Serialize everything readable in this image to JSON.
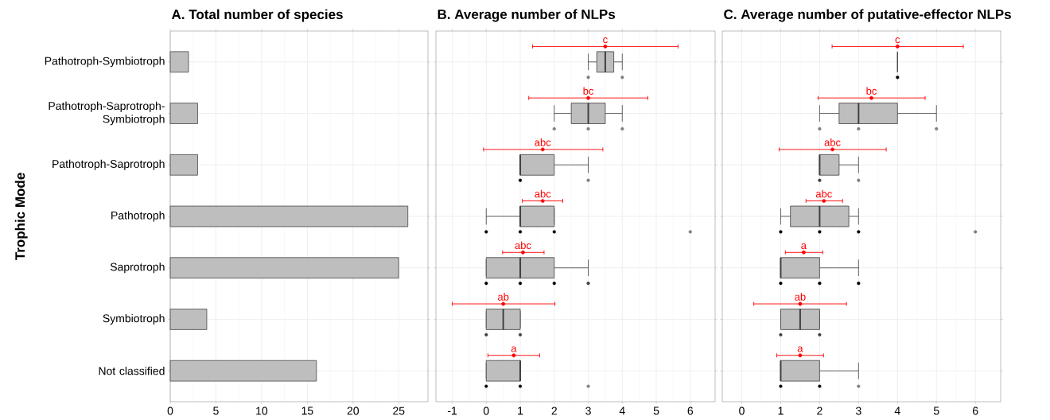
{
  "chart_data": [
    {
      "type": "bar",
      "orientation": "horizontal",
      "title": "A. Total number of species",
      "ylabel": "Trophic Mode",
      "categories": [
        "Pathotroph-Symbiotroph",
        "Pathotroph-Saprotroph-Symbiotroph",
        "Pathotroph-Saprotroph",
        "Pathotroph",
        "Saprotroph",
        "Symbiotroph",
        "Not classified"
      ],
      "values": [
        2,
        3,
        3,
        26,
        25,
        4,
        16
      ],
      "color": "#bebebe",
      "xlim": [
        0,
        28.2
      ],
      "xticks": [
        0,
        5,
        10,
        15,
        20,
        25
      ],
      "grid": true
    },
    {
      "type": "box",
      "orientation": "horizontal",
      "title": "B. Average number of NLPs",
      "categories": [
        "Pathotroph-Symbiotroph",
        "Pathotroph-Saprotroph-Symbiotroph",
        "Pathotroph-Saprotroph",
        "Pathotroph",
        "Saprotroph",
        "Symbiotroph",
        "Not classified"
      ],
      "xlim": [
        -1.48,
        6.73
      ],
      "xticks": [
        -1,
        0,
        1,
        2,
        3,
        4,
        5,
        6
      ],
      "grid": true,
      "tick_labels": "x",
      "series": [
        {
          "type": "box",
          "color": "#bebebe",
          "boxes": [
            {
              "low": 3,
              "q1": 3.25,
              "median": 3.5,
              "q3": 3.75,
              "high": 4
            },
            {
              "low": 2,
              "q1": 2.5,
              "median": 3,
              "q3": 3.5,
              "high": 4
            },
            {
              "low": 1,
              "q1": 1,
              "median": 1,
              "q3": 2,
              "high": 3
            },
            {
              "low": 0,
              "q1": 1,
              "median": 1,
              "q3": 2,
              "high": 2
            },
            {
              "low": 0,
              "q1": 0,
              "median": 1,
              "q3": 2,
              "high": 3
            },
            {
              "low": 0,
              "q1": 0,
              "median": 0.5,
              "q3": 1,
              "high": 1
            },
            {
              "low": 0,
              "q1": 0,
              "median": 1,
              "q3": 1,
              "high": 1
            }
          ]
        },
        {
          "type": "scatter",
          "x": [
            "Pathotroph-Symbiotroph",
            "Pathotroph-Symbiotroph",
            "Pathotroph-Saprotroph-Symbiotroph",
            "Pathotroph-Saprotroph-Symbiotroph",
            "Pathotroph-Saprotroph-Symbiotroph",
            "Pathotroph-Saprotroph",
            "Pathotroph-Saprotroph",
            "Pathotroph",
            "Pathotroph",
            "Pathotroph",
            "Pathotroph",
            "Saprotroph",
            "Saprotroph",
            "Saprotroph",
            "Saprotroph",
            "Symbiotroph",
            "Symbiotroph",
            "Not classified",
            "Not classified",
            "Not classified"
          ],
          "values": [
            3,
            4,
            2,
            3,
            4,
            1,
            3,
            0,
            1,
            2,
            6,
            0,
            1,
            2,
            3,
            0,
            1,
            0,
            1,
            3
          ],
          "colors": [
            "#7f7f7f",
            "#7f7f7f",
            "#7f7f7f",
            "#7f7f7f",
            "#7f7f7f",
            "#000000",
            "#7f7f7f",
            "#000000",
            "#000000",
            "#000000",
            "#7f7f7f",
            "#000000",
            "#000000",
            "#000000",
            "#3d3d3d",
            "#3d3d3d",
            "#3d3d3d",
            "#000000",
            "#000000",
            "#7f7f7f"
          ]
        },
        {
          "type": "scatter",
          "color": "#ff0000",
          "values": [
            3.5,
            3.0,
            1.66,
            1.66,
            1.08,
            0.5,
            0.81
          ],
          "errors": [
            [
              1.36,
              5.64
            ],
            [
              1.25,
              4.75
            ],
            [
              -0.08,
              3.43
            ],
            [
              1.06,
              2.25
            ],
            [
              0.48,
              1.7
            ],
            [
              -1.0,
              2.02
            ],
            [
              0.05,
              1.57
            ]
          ]
        }
      ],
      "annotations": [
        "c",
        "bc",
        "abc",
        "abc",
        "abc",
        "ab",
        "a"
      ]
    },
    {
      "type": "box",
      "orientation": "horizontal",
      "title": "C. Average number of putative-effector NLPs",
      "categories": [
        "Pathotroph-Symbiotroph",
        "Pathotroph-Saprotroph-Symbiotroph",
        "Pathotroph-Saprotroph",
        "Pathotroph",
        "Saprotroph",
        "Symbiotroph",
        "Not classified"
      ],
      "xlim": [
        -0.5,
        6.65
      ],
      "xticks": [
        0,
        1,
        2,
        3,
        4,
        5,
        6
      ],
      "grid": true,
      "tick_labels": "x",
      "series": [
        {
          "type": "box",
          "color": "#bebebe",
          "boxes": [
            {
              "low": 4,
              "q1": 4,
              "median": 4,
              "q3": 4,
              "high": 4
            },
            {
              "low": 2,
              "q1": 2.5,
              "median": 3,
              "q3": 4,
              "high": 5
            },
            {
              "low": 2,
              "q1": 2,
              "median": 2,
              "q3": 2.5,
              "high": 3
            },
            {
              "low": 1,
              "q1": 1.25,
              "median": 2,
              "q3": 2.75,
              "high": 3
            },
            {
              "low": 1,
              "q1": 1,
              "median": 1,
              "q3": 2,
              "high": 3
            },
            {
              "low": 1,
              "q1": 1,
              "median": 1.5,
              "q3": 2,
              "high": 2
            },
            {
              "low": 1,
              "q1": 1,
              "median": 1,
              "q3": 2,
              "high": 3
            }
          ]
        },
        {
          "type": "scatter",
          "x": [
            "Pathotroph-Symbiotroph",
            "Pathotroph-Saprotroph-Symbiotroph",
            "Pathotroph-Saprotroph-Symbiotroph",
            "Pathotroph-Saprotroph-Symbiotroph",
            "Pathotroph-Saprotroph",
            "Pathotroph-Saprotroph",
            "Pathotroph",
            "Pathotroph",
            "Pathotroph",
            "Pathotroph",
            "Saprotroph",
            "Saprotroph",
            "Saprotroph",
            "Symbiotroph",
            "Symbiotroph",
            "Not classified",
            "Not classified",
            "Not classified"
          ],
          "values": [
            4,
            2,
            3,
            5,
            2,
            3,
            1,
            2,
            3,
            6,
            1,
            2,
            3,
            1,
            2,
            1,
            2,
            3
          ],
          "colors": [
            "#000000",
            "#7f7f7f",
            "#7f7f7f",
            "#7f7f7f",
            "#3d3d3d",
            "#7f7f7f",
            "#000000",
            "#000000",
            "#000000",
            "#7f7f7f",
            "#000000",
            "#000000",
            "#000000",
            "#3d3d3d",
            "#3d3d3d",
            "#000000",
            "#000000",
            "#7f7f7f"
          ]
        },
        {
          "type": "scatter",
          "color": "#ff0000",
          "values": [
            4.0,
            3.33,
            2.33,
            2.11,
            1.59,
            1.5,
            1.5
          ],
          "errors": [
            [
              2.32,
              5.69
            ],
            [
              1.96,
              4.71
            ],
            [
              0.96,
              3.71
            ],
            [
              1.65,
              2.59
            ],
            [
              1.12,
              2.08
            ],
            [
              0.31,
              2.69
            ],
            [
              0.9,
              2.1
            ]
          ]
        }
      ],
      "annotations": [
        "c",
        "bc",
        "abc",
        "abc",
        "a",
        "ab",
        "a"
      ]
    }
  ]
}
